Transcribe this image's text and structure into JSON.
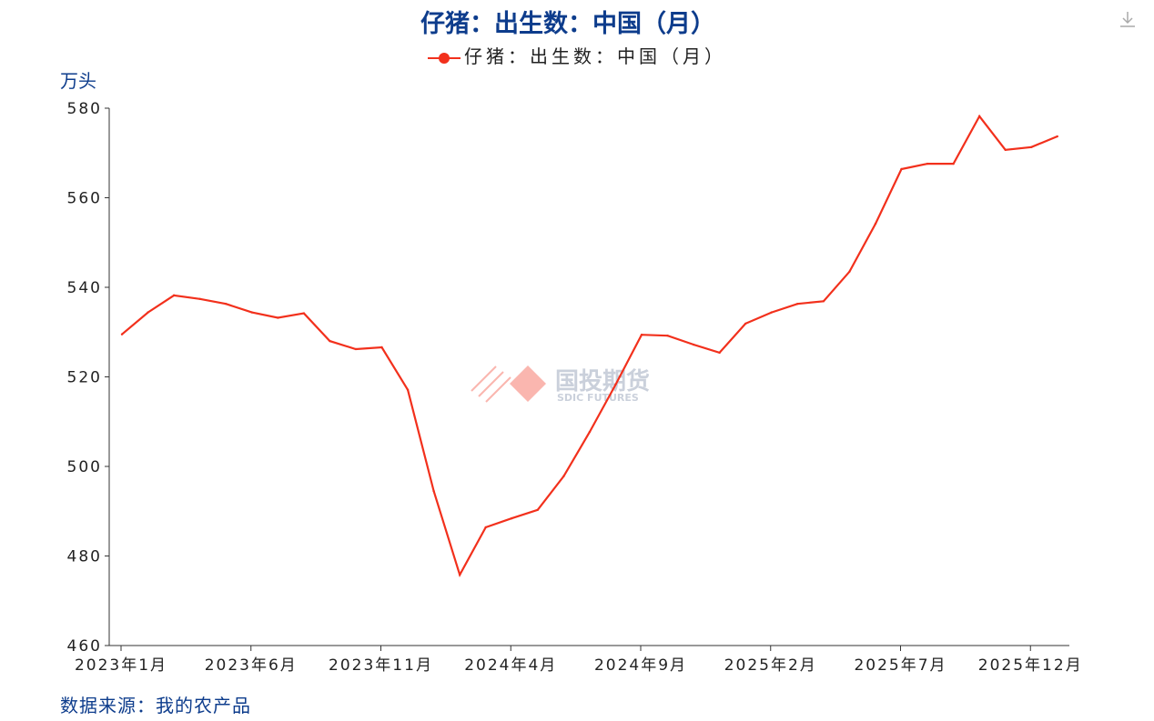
{
  "title": "仔猪：出生数：中国（月）",
  "legend": "仔猪：出生数：中国（月）",
  "unit": "万头",
  "source": "数据来源：我的农产品",
  "watermark": {
    "cn": "国投期货",
    "en": "SDIC FUTURES"
  },
  "download_icon": "download-icon",
  "chart_data": {
    "type": "line",
    "title": "仔猪：出生数：中国（月）",
    "ylabel": "万头",
    "ylim": [
      460,
      580
    ],
    "yticks": [
      460,
      480,
      500,
      520,
      540,
      560,
      580
    ],
    "xtick_labels": [
      "2023年1月",
      "2023年6月",
      "2023年11月",
      "2024年4月",
      "2024年9月",
      "2025年2月",
      "2025年7月",
      "2025年12月"
    ],
    "grid": false,
    "legend_position": "top",
    "color": "#f2301c",
    "series": [
      {
        "name": "仔猪：出生数：中国（月）",
        "start": "2023-01",
        "values": [
          529.5,
          534.4,
          538.2,
          537.4,
          536.3,
          534.4,
          533.2,
          534.2,
          528.0,
          526.2,
          526.6,
          517.1,
          494.5,
          475.8,
          486.4,
          488.4,
          490.3,
          497.8,
          507.7,
          518.3,
          529.4,
          529.2,
          527.2,
          525.4,
          531.9,
          534.4,
          536.3,
          536.9,
          543.5,
          554.2,
          566.4,
          567.6,
          567.6,
          578.2,
          570.7,
          571.3,
          573.7
        ]
      }
    ]
  }
}
